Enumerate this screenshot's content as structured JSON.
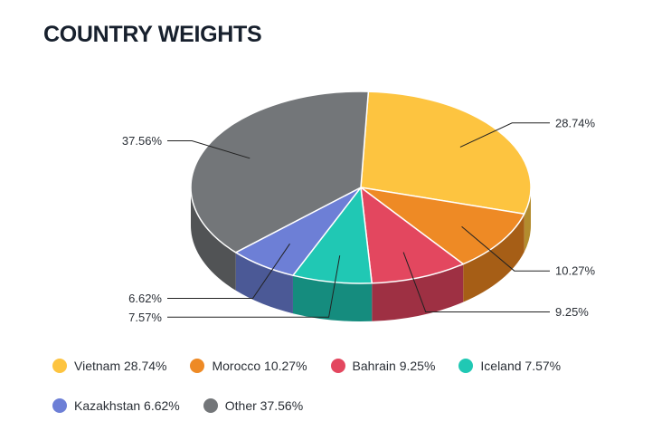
{
  "chart_data": {
    "type": "pie",
    "title": "COUNTRY WEIGHTS",
    "slices": [
      {
        "name": "Vietnam",
        "value": 28.74,
        "label": "28.74%",
        "legend": "Vietnam 28.74%",
        "color": "#fdc440",
        "side": "#b38c2e"
      },
      {
        "name": "Morocco",
        "value": 10.27,
        "label": "10.27%",
        "legend": "Morocco 10.27%",
        "color": "#ee8a25",
        "side": "#a65e16"
      },
      {
        "name": "Bahrain",
        "value": 9.25,
        "label": "9.25%",
        "legend": "Bahrain 9.25%",
        "color": "#e3475f",
        "side": "#9e3043"
      },
      {
        "name": "Iceland",
        "value": 7.57,
        "label": "7.57%",
        "legend": "Iceland 7.57%",
        "color": "#20c8b4",
        "side": "#158c7e"
      },
      {
        "name": "Kazakhstan",
        "value": 6.62,
        "label": "6.62%",
        "legend": "Kazakhstan 6.62%",
        "color": "#6d7fd6",
        "side": "#4b5996"
      },
      {
        "name": "Other",
        "value": 37.56,
        "label": "37.56%",
        "legend": "Other 37.56%",
        "color": "#737679",
        "side": "#515355"
      }
    ],
    "legend_position": "bottom",
    "three_d": true
  }
}
